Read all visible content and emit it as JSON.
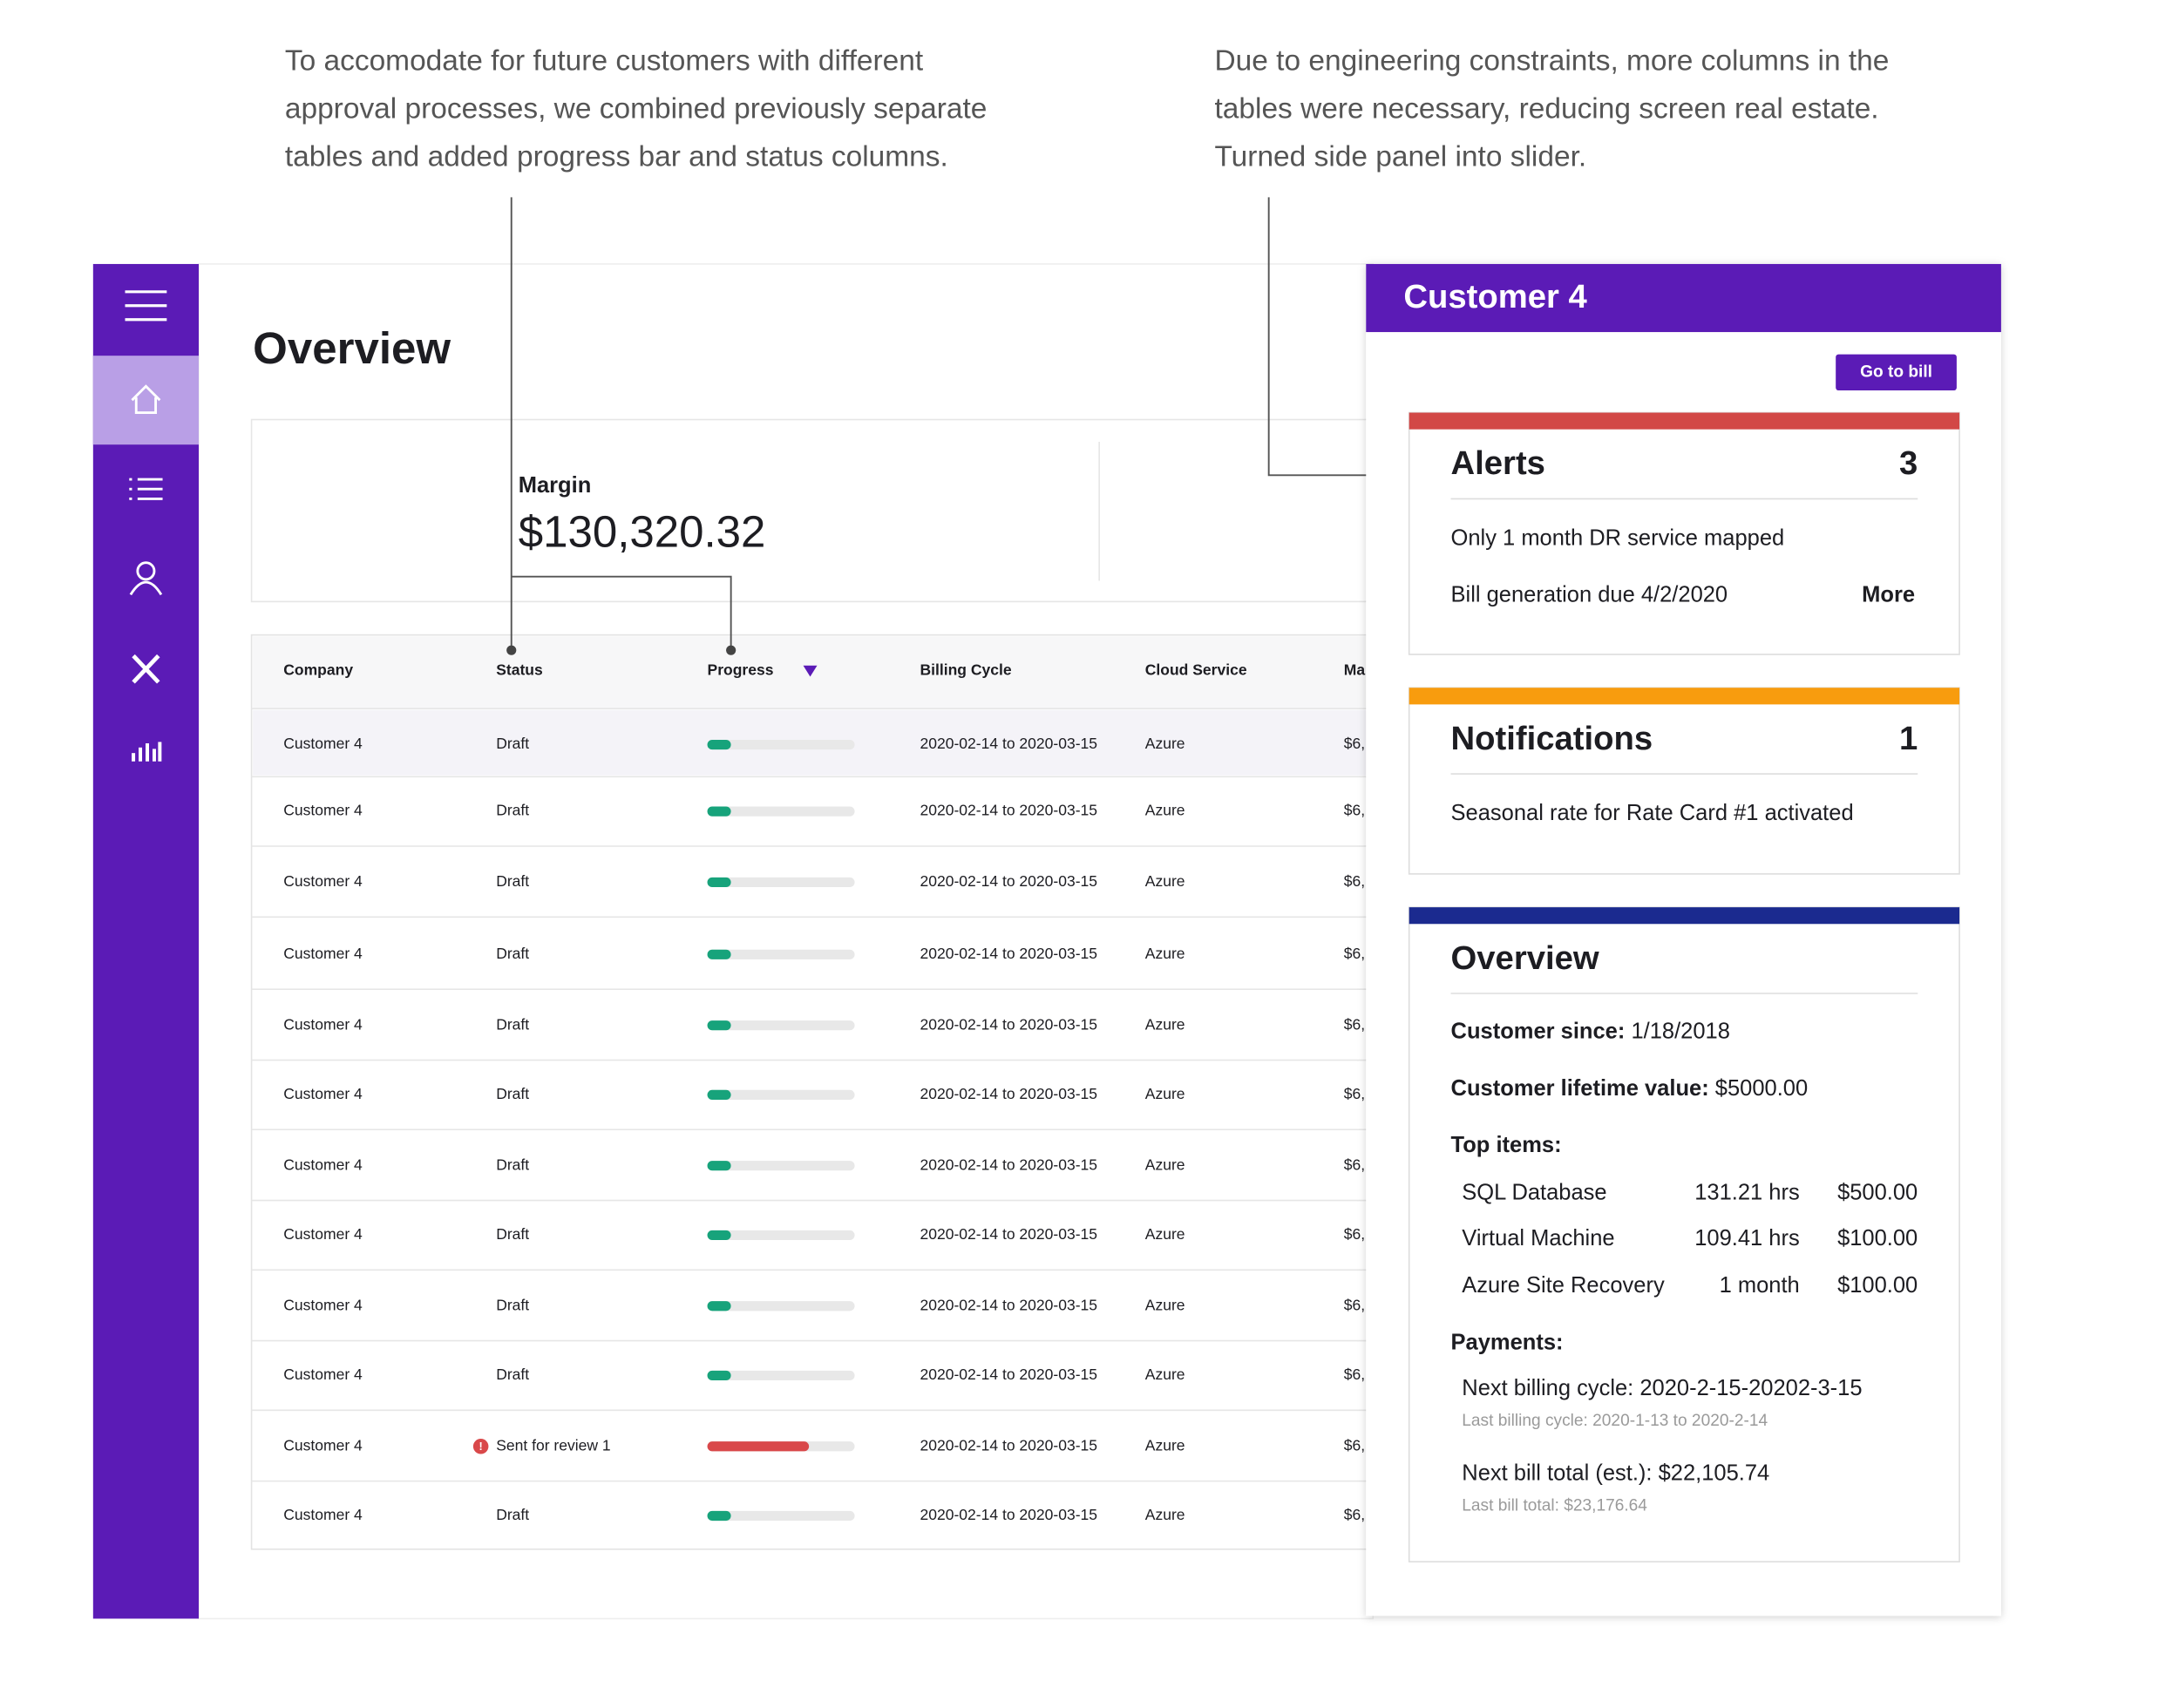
{
  "annotations": [
    {
      "lines": [
        "To accomodate for future customers with different",
        "approval processes, we combined previously separate",
        "tables and added progress bar and status columns."
      ]
    },
    {
      "lines": [
        "Due to engineering constraints, more columns in the",
        "tables were necessary, reducing screen real estate.",
        "Turned side panel into slider."
      ]
    }
  ],
  "overview": {
    "title": "Overview",
    "margin_label": "Margin",
    "margin_value": "$130,320.32"
  },
  "table": {
    "headers": [
      "Company",
      "Status",
      "Progress",
      "Billing Cycle",
      "Cloud Service",
      "Ma"
    ],
    "rows": [
      {
        "company": "Customer 4",
        "status": "Draft",
        "alert": false,
        "progress": 16,
        "progress_color": "#17a37b",
        "billing_cycle": "2020-02-14 to 2020-03-15",
        "cloud_service": "Azure",
        "margin": "$6,"
      },
      {
        "company": "Customer 4",
        "status": "Draft",
        "alert": false,
        "progress": 16,
        "progress_color": "#17a37b",
        "billing_cycle": "2020-02-14 to 2020-03-15",
        "cloud_service": "Azure",
        "margin": "$6,"
      },
      {
        "company": "Customer 4",
        "status": "Draft",
        "alert": false,
        "progress": 16,
        "progress_color": "#17a37b",
        "billing_cycle": "2020-02-14 to 2020-03-15",
        "cloud_service": "Azure",
        "margin": "$6,"
      },
      {
        "company": "Customer 4",
        "status": "Draft",
        "alert": false,
        "progress": 16,
        "progress_color": "#17a37b",
        "billing_cycle": "2020-02-14 to 2020-03-15",
        "cloud_service": "Azure",
        "margin": "$6,"
      },
      {
        "company": "Customer 4",
        "status": "Draft",
        "alert": false,
        "progress": 16,
        "progress_color": "#17a37b",
        "billing_cycle": "2020-02-14 to 2020-03-15",
        "cloud_service": "Azure",
        "margin": "$6,"
      },
      {
        "company": "Customer 4",
        "status": "Draft",
        "alert": false,
        "progress": 16,
        "progress_color": "#17a37b",
        "billing_cycle": "2020-02-14 to 2020-03-15",
        "cloud_service": "Azure",
        "margin": "$6,"
      },
      {
        "company": "Customer 4",
        "status": "Draft",
        "alert": false,
        "progress": 16,
        "progress_color": "#17a37b",
        "billing_cycle": "2020-02-14 to 2020-03-15",
        "cloud_service": "Azure",
        "margin": "$6,"
      },
      {
        "company": "Customer 4",
        "status": "Draft",
        "alert": false,
        "progress": 16,
        "progress_color": "#17a37b",
        "billing_cycle": "2020-02-14 to 2020-03-15",
        "cloud_service": "Azure",
        "margin": "$6,"
      },
      {
        "company": "Customer 4",
        "status": "Draft",
        "alert": false,
        "progress": 16,
        "progress_color": "#17a37b",
        "billing_cycle": "2020-02-14 to 2020-03-15",
        "cloud_service": "Azure",
        "margin": "$6,"
      },
      {
        "company": "Customer 4",
        "status": "Draft",
        "alert": false,
        "progress": 16,
        "progress_color": "#17a37b",
        "billing_cycle": "2020-02-14 to 2020-03-15",
        "cloud_service": "Azure",
        "margin": "$6,"
      },
      {
        "company": "Customer 4",
        "status": "Sent for review 1",
        "alert": true,
        "progress": 69,
        "progress_color": "#d9484a",
        "billing_cycle": "2020-02-14 to 2020-03-15",
        "cloud_service": "Azure",
        "margin": "$6,"
      },
      {
        "company": "Customer 4",
        "status": "Draft",
        "alert": false,
        "progress": 16,
        "progress_color": "#17a37b",
        "billing_cycle": "2020-02-14 to 2020-03-15",
        "cloud_service": "Azure",
        "margin": "$6,"
      }
    ]
  },
  "panel": {
    "title": "Customer 4",
    "button": "Go to bill",
    "alerts": {
      "title": "Alerts",
      "count": "3",
      "items": [
        "Only 1 month DR service mapped",
        "Bill generation due 4/2/2020"
      ],
      "more": "More"
    },
    "notifications": {
      "title": "Notifications",
      "count": "1",
      "items": [
        "Seasonal rate for Rate Card #1 activated"
      ]
    },
    "overview": {
      "title": "Overview",
      "customer_since": {
        "label": "Customer since:",
        "value": "1/18/2018"
      },
      "lifetime_value": {
        "label": "Customer lifetime value:",
        "value": "$5000.00"
      },
      "top_items_label": "Top items:",
      "top_items": [
        [
          "SQL Database",
          "131.21 hrs",
          "$500.00"
        ],
        [
          "Virtual Machine",
          "109.41 hrs",
          "$100.00"
        ],
        [
          "Azure Site Recovery",
          "1 month",
          "$100.00"
        ]
      ],
      "payments_label": "Payments:",
      "next_billing_cycle": "Next billing cycle: 2020-2-15-20202-3-15",
      "last_billing_cycle": "Last billing cycle: 2020-1-13 to 2020-2-14",
      "next_bill_total": "Next bill total (est.): $22,105.74",
      "last_bill_total": "Last bill total: $23,176.64"
    }
  }
}
